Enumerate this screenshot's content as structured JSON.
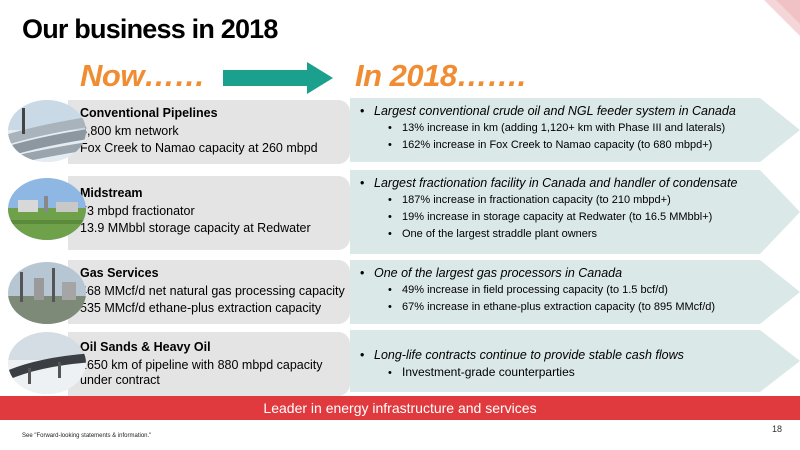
{
  "title": "Our business in 2018",
  "header": {
    "now": "Now……",
    "future": "In 2018……."
  },
  "bullet": "•",
  "segments": [
    {
      "name": "Conventional Pipelines",
      "lines": [
        "8,800 km network",
        "Fox Creek to Namao capacity at 260 mbpd"
      ],
      "main": "Largest conventional crude oil and NGL feeder system in Canada",
      "subs": [
        "13% increase in km (adding 1,120+ km with Phase III and laterals)",
        "162% increase in Fox Creek to Namao capacity (to 680 mbpd+)"
      ]
    },
    {
      "name": "Midstream",
      "lines": [
        "73 mbpd fractionator",
        "13.9 MMbbl storage capacity at Redwater"
      ],
      "main": "Largest fractionation facility in Canada and handler of condensate",
      "subs": [
        "187% increase in fractionation capacity (to 210 mbpd+)",
        "19% increase in storage capacity at Redwater (to 16.5 MMbbl+)",
        "One of the largest straddle plant owners"
      ]
    },
    {
      "name": "Gas Services",
      "lines": [
        "468 MMcf/d net natural gas processing capacity",
        "535 MMcf/d ethane-plus extraction capacity"
      ],
      "main": "One of the largest gas processors in Canada",
      "subs": [
        "49% increase in field processing capacity (to 1.5 bcf/d)",
        "67% increase in ethane-plus extraction capacity (to 895 MMcf/d)"
      ]
    },
    {
      "name": "Oil Sands & Heavy Oil",
      "lines": [
        "1650 km of pipeline with 880 mbpd capacity under contract"
      ],
      "main": "Long-life contracts continue to provide stable cash flows",
      "subs": [
        "Investment-grade counterparties"
      ]
    }
  ],
  "banner": "Leader in energy infrastructure and services",
  "page_number": "18",
  "footnote": "See \"Forward-looking statements & information.\"",
  "colors": {
    "accent_orange": "#f08c32",
    "arrow_teal": "#1aa08c",
    "banner_red": "#e03a3e",
    "panel_gray": "#e4e4e4",
    "arrow_pale": "#dbe8e8"
  }
}
